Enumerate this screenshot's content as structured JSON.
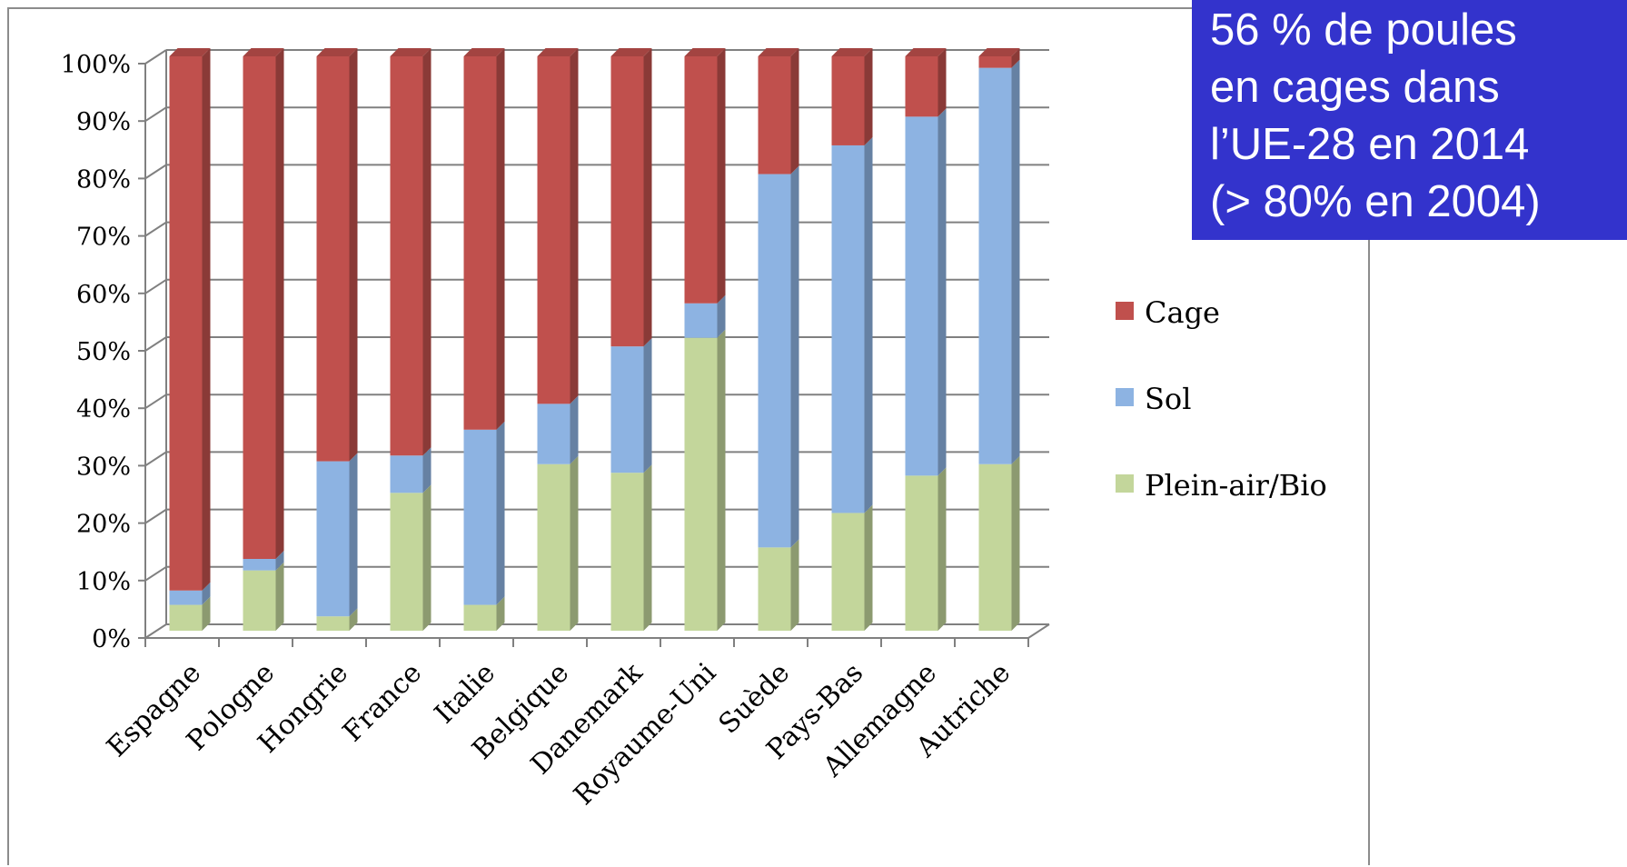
{
  "colors": {
    "cage": "#c0504d",
    "sol": "#8db3e2",
    "plein_air_bio": "#c3d69b",
    "callout_bg": "#3333cc",
    "callout_text": "#ffffff",
    "grid": "#808080"
  },
  "callout": {
    "lines": [
      "56 % de poules",
      "en cages dans",
      "l’UE-28 en 2014",
      "(> 80% en 2004)"
    ]
  },
  "chart_data": {
    "type": "bar",
    "stacked": true,
    "percent_stacked": true,
    "three_d": true,
    "categories": [
      "Espagne",
      "Pologne",
      "Hongrie",
      "France",
      "Italie",
      "Belgique",
      "Danemark",
      "Royaume-Uni",
      "Suède",
      "Pays-Bas",
      "Allemagne",
      "Autriche"
    ],
    "series": [
      {
        "name": "Plein-air/Bio",
        "color_key": "plein_air_bio",
        "values": [
          4.5,
          10.5,
          2.5,
          24,
          4.5,
          29,
          27.5,
          51,
          14.5,
          20.5,
          27,
          29
        ]
      },
      {
        "name": "Sol",
        "color_key": "sol",
        "values": [
          2.5,
          2,
          27,
          6.5,
          30.5,
          10.5,
          22,
          6,
          65,
          64,
          62.5,
          69
        ]
      },
      {
        "name": "Cage",
        "color_key": "cage",
        "values": [
          93,
          87.5,
          70.5,
          69.5,
          65,
          60.5,
          50.5,
          43,
          20.5,
          15.5,
          10.5,
          2
        ]
      }
    ],
    "yticks": [
      "0%",
      "10%",
      "20%",
      "30%",
      "40%",
      "50%",
      "60%",
      "70%",
      "80%",
      "90%",
      "100%"
    ],
    "ylim": [
      0,
      100
    ],
    "grid": true,
    "legend": [
      "Cage",
      "Sol",
      "Plein-air/Bio"
    ],
    "legend_position": "right"
  }
}
